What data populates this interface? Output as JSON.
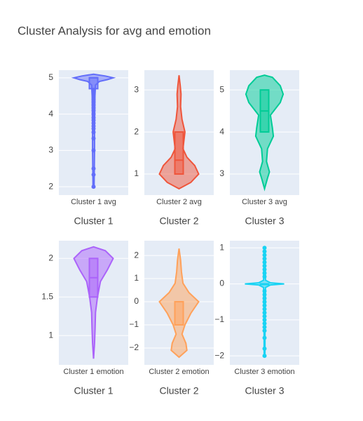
{
  "title": "Cluster Analysis for avg and emotion",
  "chart_data": [
    {
      "type": "violin",
      "category": "Cluster 1 avg",
      "xlabel": "Cluster 1",
      "color": "#636efa",
      "ylim": [
        1.77,
        5.21
      ],
      "yticks": [
        2,
        3,
        4,
        5
      ],
      "grid": true,
      "box": {
        "q1": 4.7,
        "median": 5,
        "q3": 5
      },
      "density": {
        "y": [
          1.98,
          2.5,
          3,
          3.5,
          4,
          4.5,
          4.8,
          4.9,
          4.95,
          5,
          5.05,
          5.1
        ],
        "width": [
          0.03,
          0.04,
          0.05,
          0.05,
          0.06,
          0.07,
          0.1,
          0.3,
          0.7,
          1,
          0.6,
          0
        ]
      },
      "points": [
        2,
        2.33,
        2.5,
        3,
        3.33,
        3.5,
        3.6,
        3.67,
        3.75,
        3.83,
        3.9,
        4,
        4.1,
        4.17,
        4.25,
        4.33,
        4.4,
        4.5,
        4.6,
        4.67
      ]
    },
    {
      "type": "violin",
      "category": "Cluster 2 avg",
      "xlabel": "Cluster 2",
      "color": "#ef553b",
      "ylim": [
        0.5,
        3.47
      ],
      "yticks": [
        1,
        2,
        3
      ],
      "grid": true,
      "box": {
        "q1": 1,
        "median": 1.33,
        "q3": 2
      },
      "density": {
        "y": [
          0.65,
          0.8,
          1,
          1.2,
          1.4,
          1.6,
          1.8,
          2,
          2.3,
          2.6,
          2.9,
          3.1,
          3.35
        ],
        "width": [
          0,
          0.6,
          1,
          0.8,
          0.4,
          0.2,
          0.25,
          0.3,
          0.15,
          0.08,
          0.1,
          0.06,
          0
        ]
      },
      "points": []
    },
    {
      "type": "violin",
      "category": "Cluster 3 avg",
      "xlabel": "Cluster 3",
      "color": "#00cc96",
      "ylim": [
        2.5,
        5.47
      ],
      "yticks": [
        3,
        4,
        5
      ],
      "grid": true,
      "box": {
        "q1": 4,
        "median": 4.5,
        "q3": 5
      },
      "density": {
        "y": [
          2.65,
          2.9,
          3.05,
          3.3,
          3.6,
          3.9,
          4.1,
          4.4,
          4.7,
          4.9,
          5.1,
          5.3,
          5.35
        ],
        "width": [
          0,
          0.15,
          0.25,
          0.1,
          0.15,
          0.45,
          0.4,
          0.3,
          0.8,
          0.95,
          0.8,
          0.4,
          0
        ]
      },
      "points": []
    },
    {
      "type": "violin",
      "category": "Cluster 1 emotion",
      "xlabel": "Cluster 1",
      "color": "#ab63fa",
      "ylim": [
        0.62,
        2.23
      ],
      "yticks": [
        1,
        1.5,
        2
      ],
      "grid": true,
      "box": {
        "q1": 1.5,
        "median": 1.75,
        "q3": 2
      },
      "density": {
        "y": [
          0.7,
          0.9,
          1.1,
          1.3,
          1.5,
          1.7,
          1.85,
          2,
          2.1,
          2.15
        ],
        "width": [
          0,
          0.05,
          0.08,
          0.1,
          0.2,
          0.35,
          0.7,
          1,
          0.6,
          0
        ]
      },
      "points": []
    },
    {
      "type": "violin",
      "category": "Cluster 2 emotion",
      "xlabel": "Cluster 2",
      "color": "#ffa15a",
      "ylim": [
        -2.73,
        2.64
      ],
      "yticks": [
        {
          "value": -2,
          "label": "−2"
        },
        {
          "value": -1,
          "label": "−1"
        },
        0,
        1,
        2
      ],
      "grid": true,
      "box": {
        "q1": -1,
        "median": 0,
        "q3": 0
      },
      "density": {
        "y": [
          -2.4,
          -2.1,
          -1.8,
          -1.4,
          -1,
          -0.5,
          0,
          0.4,
          0.8,
          1.3,
          1.8,
          2.3
        ],
        "width": [
          0,
          0.4,
          0.35,
          0.15,
          0.3,
          0.6,
          1,
          0.5,
          0.2,
          0.12,
          0.08,
          0
        ]
      },
      "points": []
    },
    {
      "type": "violin",
      "category": "Cluster 3 emotion",
      "xlabel": "Cluster 3",
      "color": "#19d3f3",
      "ylim": [
        -2.25,
        1.2
      ],
      "yticks": [
        {
          "value": -2,
          "label": "−2"
        },
        {
          "value": -1,
          "label": "−1"
        },
        0,
        1
      ],
      "grid": true,
      "box": {
        "q1": 0,
        "median": 0,
        "q3": 0
      },
      "density": {
        "y": [
          -2,
          -1,
          -0.1,
          -0.03,
          0,
          0.03,
          0.1,
          1
        ],
        "width": [
          0.02,
          0.03,
          0.05,
          0.3,
          1,
          0.3,
          0.05,
          0.02
        ]
      },
      "points": [
        -2,
        -1.8,
        -1.5,
        -1.3,
        -1.2,
        -1.1,
        -1,
        -0.9,
        -0.8,
        -0.7,
        -0.6,
        -0.5,
        -0.4,
        -0.3,
        -0.2,
        0.2,
        0.3,
        0.4,
        0.5,
        0.6,
        0.7,
        0.8,
        0.9,
        1
      ]
    }
  ]
}
